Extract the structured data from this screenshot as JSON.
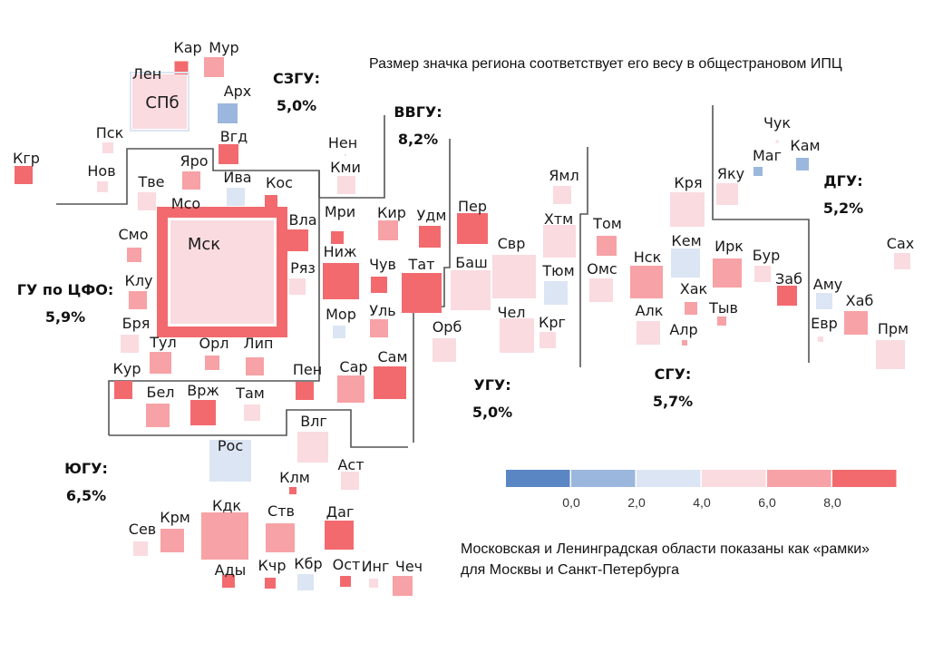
{
  "chart_data": {
    "type": "heatmap",
    "subtype": "tile-grid-map",
    "title": "Размер значка региона соответствует его весу в общестрановом ИПЦ",
    "note_lines": [
      "Московская и Ленинградская области показаны как «рамки»",
      "для Москвы и Санкт-Петербурга"
    ],
    "legend": {
      "placement": "bottom-right",
      "bins": [
        {
          "range": "< 0,0",
          "color": "#5b86c4"
        },
        {
          "range": "0,0–2,0",
          "color": "#9cb7dd"
        },
        {
          "range": "2,0–4,0",
          "color": "#dce5f3"
        },
        {
          "range": "4,0–6,0",
          "color": "#f9dbe0"
        },
        {
          "range": "6,0–8,0",
          "color": "#f7a2a6"
        },
        {
          "range": "> 8,0",
          "color": "#f26a6e"
        }
      ],
      "ticks": [
        "0,0",
        "2,0",
        "4,0",
        "6,0",
        "8,0"
      ]
    },
    "districts": [
      {
        "name": "СЗГУ:",
        "value": "5,0%"
      },
      {
        "name": "ВВГУ:",
        "value": "8,2%"
      },
      {
        "name": "ГУ по ЦФО:",
        "value": "5,9%"
      },
      {
        "name": "УГУ:",
        "value": "5,0%"
      },
      {
        "name": "СГУ:",
        "value": "5,7%"
      },
      {
        "name": "ДГУ:",
        "value": "5,2%"
      },
      {
        "name": "ЮГУ:",
        "value": "6,5%"
      }
    ],
    "regions": [
      {
        "label": "Кар",
        "bin": 5,
        "weight": 0.22
      },
      {
        "label": "Мур",
        "bin": 4,
        "weight": 0.45
      },
      {
        "label": "Лен",
        "bin": 2,
        "weight": 1.1,
        "frame": true
      },
      {
        "label": "СПб",
        "bin": 3,
        "weight": 4.3
      },
      {
        "label": "Арх",
        "bin": 1,
        "weight": 0.45
      },
      {
        "label": "Вгд",
        "bin": 5,
        "weight": 0.5
      },
      {
        "label": "Пск",
        "bin": 3,
        "weight": 0.17
      },
      {
        "label": "Нов",
        "bin": 3,
        "weight": 0.17
      },
      {
        "label": "Кгр",
        "bin": 5,
        "weight": 0.4
      },
      {
        "label": "Нен",
        "bin": 2,
        "weight": 0.01
      },
      {
        "label": "Кми",
        "bin": 3,
        "weight": 0.4
      },
      {
        "label": "Яро",
        "bin": 4,
        "weight": 0.45
      },
      {
        "label": "Тве",
        "bin": 3,
        "weight": 0.45
      },
      {
        "label": "Ива",
        "bin": 2,
        "weight": 0.4
      },
      {
        "label": "Кос",
        "bin": 5,
        "weight": 0.22
      },
      {
        "label": "Мсо",
        "bin": 5,
        "weight": 6.0,
        "frame": true
      },
      {
        "label": "Мск",
        "bin": 3,
        "weight": 13.5
      },
      {
        "label": "Вла",
        "bin": 5,
        "weight": 0.5
      },
      {
        "label": "Смо",
        "bin": 4,
        "weight": 0.25
      },
      {
        "label": "Ряз",
        "bin": 3,
        "weight": 0.35
      },
      {
        "label": "Клу",
        "bin": 4,
        "weight": 0.42
      },
      {
        "label": "Бря",
        "bin": 3,
        "weight": 0.38
      },
      {
        "label": "Тул",
        "bin": 4,
        "weight": 0.55
      },
      {
        "label": "Орл",
        "bin": 4,
        "weight": 0.25
      },
      {
        "label": "Лип",
        "bin": 4,
        "weight": 0.42
      },
      {
        "label": "Кур",
        "bin": 5,
        "weight": 0.42
      },
      {
        "label": "Бел",
        "bin": 4,
        "weight": 0.75
      },
      {
        "label": "Врж",
        "bin": 5,
        "weight": 0.85
      },
      {
        "label": "Там",
        "bin": 3,
        "weight": 0.3
      },
      {
        "label": "Мри",
        "bin": 5,
        "weight": 0.17
      },
      {
        "label": "Кир",
        "bin": 4,
        "weight": 0.45
      },
      {
        "label": "Удм",
        "bin": 5,
        "weight": 0.6
      },
      {
        "label": "Ниж",
        "bin": 5,
        "weight": 1.6
      },
      {
        "label": "Чув",
        "bin": 5,
        "weight": 0.3
      },
      {
        "label": "Тат",
        "bin": 5,
        "weight": 2.0
      },
      {
        "label": "Мор",
        "bin": 2,
        "weight": 0.2
      },
      {
        "label": "Уль",
        "bin": 4,
        "weight": 0.42
      },
      {
        "label": "Пен",
        "bin": 5,
        "weight": 0.42
      },
      {
        "label": "Сар",
        "bin": 4,
        "weight": 0.8
      },
      {
        "label": "Сам",
        "bin": 5,
        "weight": 1.4
      },
      {
        "label": "Пер",
        "bin": 5,
        "weight": 1.1
      },
      {
        "label": "Баш",
        "bin": 3,
        "weight": 1.9
      },
      {
        "label": "Орб",
        "bin": 3,
        "weight": 0.65
      },
      {
        "label": "Свр",
        "bin": 3,
        "weight": 2.2
      },
      {
        "label": "Чел",
        "bin": 3,
        "weight": 1.4
      },
      {
        "label": "Ямл",
        "bin": 3,
        "weight": 0.45
      },
      {
        "label": "Хтм",
        "bin": 3,
        "weight": 1.3
      },
      {
        "label": "Тюм",
        "bin": 2,
        "weight": 0.75
      },
      {
        "label": "Крг",
        "bin": 3,
        "weight": 0.3
      },
      {
        "label": "Том",
        "bin": 4,
        "weight": 0.48
      },
      {
        "label": "Омс",
        "bin": 3,
        "weight": 0.75
      },
      {
        "label": "Нск",
        "bin": 4,
        "weight": 1.3
      },
      {
        "label": "Алк",
        "bin": 3,
        "weight": 0.65
      },
      {
        "label": "Кря",
        "bin": 3,
        "weight": 1.5
      },
      {
        "label": "Кем",
        "bin": 2,
        "weight": 1.1
      },
      {
        "label": "Хак",
        "bin": 4,
        "weight": 0.2
      },
      {
        "label": "Алр",
        "bin": 4,
        "weight": 0.05
      },
      {
        "label": "Тыв",
        "bin": 4,
        "weight": 0.1
      },
      {
        "label": "Ирк",
        "bin": 4,
        "weight": 1.1
      },
      {
        "label": "Бур",
        "bin": 3,
        "weight": 0.35
      },
      {
        "label": "Заб",
        "bin": 5,
        "weight": 0.5
      },
      {
        "label": "Яку",
        "bin": 3,
        "weight": 0.6
      },
      {
        "label": "Чук",
        "bin": 3,
        "weight": 0.01
      },
      {
        "label": "Маг",
        "bin": 1,
        "weight": 0.1
      },
      {
        "label": "Кам",
        "bin": 1,
        "weight": 0.2
      },
      {
        "label": "Сах",
        "bin": 3,
        "weight": 0.35
      },
      {
        "label": "Аму",
        "bin": 2,
        "weight": 0.35
      },
      {
        "label": "Хаб",
        "bin": 4,
        "weight": 0.75
      },
      {
        "label": "Евр",
        "bin": 3,
        "weight": 0.05
      },
      {
        "label": "Прм",
        "bin": 3,
        "weight": 1.2
      },
      {
        "label": "Влг",
        "bin": 3,
        "weight": 1.1
      },
      {
        "label": "Рос",
        "bin": 2,
        "weight": 2.1
      },
      {
        "label": "Клм",
        "bin": 5,
        "weight": 0.06
      },
      {
        "label": "Аст",
        "bin": 3,
        "weight": 0.45
      },
      {
        "label": "Сев",
        "bin": 3,
        "weight": 0.25
      },
      {
        "label": "Крм",
        "bin": 4,
        "weight": 0.65
      },
      {
        "label": "Кдк",
        "bin": 4,
        "weight": 2.9
      },
      {
        "label": "Ств",
        "bin": 4,
        "weight": 1.1
      },
      {
        "label": "Даг",
        "bin": 5,
        "weight": 1.0
      },
      {
        "label": "Ады",
        "bin": 5,
        "weight": 0.2
      },
      {
        "label": "Кчр",
        "bin": 5,
        "weight": 0.17
      },
      {
        "label": "Кбр",
        "bin": 2,
        "weight": 0.25
      },
      {
        "label": "Ост",
        "bin": 5,
        "weight": 0.17
      },
      {
        "label": "Инг",
        "bin": 3,
        "weight": 0.1
      },
      {
        "label": "Чеч",
        "bin": 4,
        "weight": 0.45
      }
    ]
  }
}
